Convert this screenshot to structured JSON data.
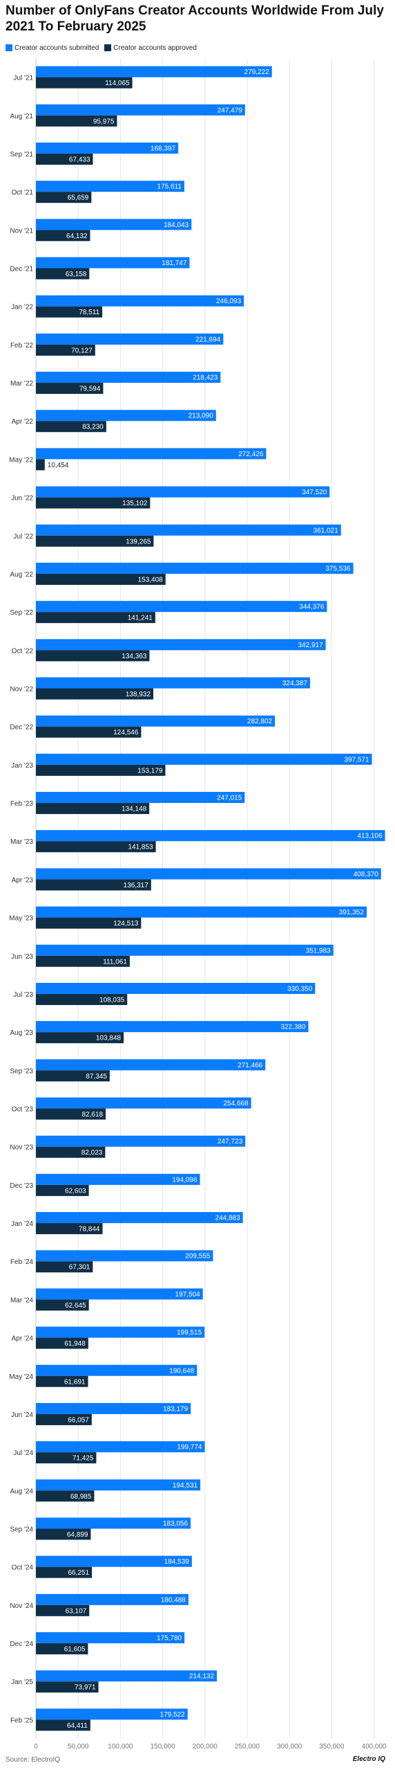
{
  "title": "Number of OnlyFans Creator Accounts Worldwide From July 2021 To February 2025",
  "source": "Source: ElectroIQ",
  "brand": "Electro IQ",
  "colors": {
    "submitted": "#0a7cff",
    "approved": "#0f2f47",
    "grid": "#e5e5e5",
    "label_dark": "#222222"
  },
  "legend": [
    {
      "label": "Creator accounts submitted",
      "color": "#0a7cff"
    },
    {
      "label": "Creator accounts approved",
      "color": "#0f2f47"
    }
  ],
  "chart_data": {
    "type": "bar",
    "orientation": "horizontal",
    "categories": [
      "Jul '21",
      "Aug '21",
      "Sep '21",
      "Oct '21",
      "Nov '21",
      "Dec '21",
      "Jan '22",
      "Feb '22",
      "Mar '22",
      "Apr '22",
      "May '22",
      "Jun '22",
      "Jul '22",
      "Aug '22",
      "Sep '22",
      "Oct '22",
      "Nov '22",
      "Dec '22",
      "Jan '23",
      "Feb '23",
      "Mar '23",
      "Apr '23",
      "May '23",
      "Jun '23",
      "Jul '23",
      "Aug '23",
      "Sep '23",
      "Oct '23",
      "Nov '23",
      "Dec '23",
      "Jan '24",
      "Feb '24",
      "Mar '24",
      "Apr '24",
      "May '24",
      "Jun '24",
      "Jul '24",
      "Aug '24",
      "Sep '24",
      "Oct '24",
      "Nov '24",
      "Dec '24",
      "Jan '25",
      "Feb '25"
    ],
    "series": [
      {
        "name": "Creator accounts submitted",
        "values": [
          279222,
          247479,
          168397,
          175611,
          184043,
          181747,
          246093,
          221694,
          218423,
          213090,
          272426,
          347520,
          361021,
          375536,
          344376,
          342917,
          324387,
          282802,
          397571,
          247015,
          413106,
          408370,
          391352,
          351983,
          330350,
          322380,
          271466,
          254668,
          247723,
          194096,
          244883,
          209555,
          197504,
          199515,
          190648,
          183179,
          199774,
          194531,
          183056,
          184539,
          180488,
          175780,
          214132,
          179522
        ],
        "labels": [
          "279,222",
          "247,479",
          "168,397",
          "175,611",
          "184,043",
          "181,747",
          "246,093",
          "221,694",
          "218,423",
          "213,090",
          "272,426",
          "347,520",
          "361,021",
          "375,536",
          "344,376",
          "342,917",
          "324,387",
          "282,802",
          "397,571",
          "247,015",
          "413,106",
          "408,370",
          "391,352",
          "351,983",
          "330,350",
          "322,380",
          "271,466",
          "254,668",
          "247,723",
          "194,096",
          "244,883",
          "209,555",
          "197,504",
          "199,515",
          "190,648",
          "183,179",
          "199,774",
          "194,531",
          "183,056",
          "184,539",
          "180,488",
          "175,780",
          "214,132",
          "179,522"
        ]
      },
      {
        "name": "Creator accounts approved",
        "values": [
          114065,
          95975,
          67433,
          65659,
          64132,
          63158,
          78511,
          70127,
          79594,
          83230,
          10454,
          135102,
          139265,
          153408,
          141241,
          134363,
          138932,
          124546,
          153179,
          134148,
          141853,
          136317,
          124513,
          111061,
          108035,
          103848,
          87345,
          82618,
          82023,
          62603,
          78844,
          67301,
          62645,
          61948,
          61691,
          66057,
          71425,
          68985,
          64899,
          66251,
          63107,
          61605,
          73971,
          64411
        ],
        "labels": [
          "114,065",
          "95,975",
          "67,433",
          "65,659",
          "64,132",
          "63,158",
          "78,511",
          "70,127",
          "79,594",
          "83,230",
          "10,454",
          "135,102",
          "139,265",
          "153,408",
          "141,241",
          "134,363",
          "138,932",
          "124,546",
          "153,179",
          "134,148",
          "141,853",
          "136,317",
          "124,513",
          "111,061",
          "108,035",
          "103,848",
          "87,345",
          "82,618",
          "82,023",
          "62,603",
          "78,844",
          "67,301",
          "62,645",
          "61,948",
          "61,691",
          "66,057",
          "71,425",
          "68,985",
          "64,899",
          "66,251",
          "63,107",
          "61,605",
          "73,971",
          "64,411"
        ]
      }
    ],
    "xlim": [
      0,
      420000
    ],
    "xticks": [
      0,
      50000,
      100000,
      150000,
      200000,
      250000,
      300000,
      350000,
      400000
    ],
    "xtick_labels": [
      "0",
      "50,000",
      "100,000",
      "150,000",
      "200,000",
      "250,000",
      "300,000",
      "350,000",
      "400,000"
    ],
    "xlabel": "",
    "ylabel": "",
    "grid": "vertical",
    "legend_position": "top-left"
  }
}
